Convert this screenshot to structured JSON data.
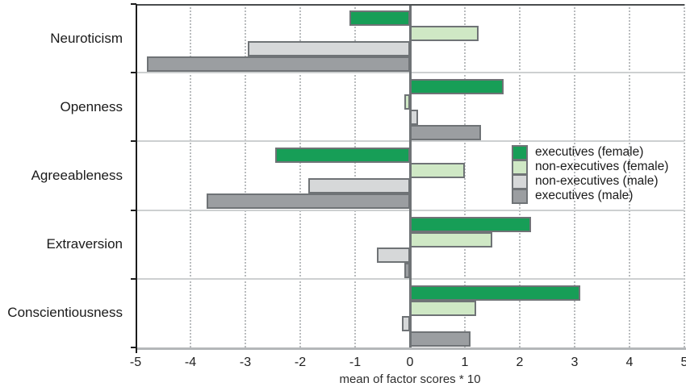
{
  "chart_data": {
    "type": "bar",
    "orientation": "horizontal",
    "title": "",
    "xlabel": "mean of factor scores * 10",
    "ylabel": "",
    "xlim": [
      -5,
      5
    ],
    "xticks": [
      -5,
      -4,
      -3,
      -2,
      -1,
      0,
      1,
      2,
      3,
      4,
      5
    ],
    "grid": "vertical dotted gridlines at each integer, horizontal solid separators between categories",
    "legend_position": "inside top-right (over Agreeableness band)",
    "categories": [
      "Neuroticism",
      "Openness",
      "Agreeableness",
      "Extraversion",
      "Conscientiousness"
    ],
    "series": [
      {
        "name": "executives (female)",
        "color": "#179e57",
        "values": [
          -1.1,
          1.7,
          -2.45,
          2.2,
          3.1
        ]
      },
      {
        "name": "non-executives (female)",
        "color": "#cfe8c5",
        "values": [
          1.25,
          -0.1,
          1.0,
          1.5,
          1.2
        ]
      },
      {
        "name": "non-executives (male)",
        "color": "#d6d8d9",
        "values": [
          -2.95,
          0.15,
          -1.85,
          -0.6,
          -0.15
        ]
      },
      {
        "name": "executives (male)",
        "color": "#9b9ea1",
        "values": [
          -4.8,
          1.3,
          -3.7,
          -0.1,
          1.1
        ]
      }
    ]
  },
  "colors": {
    "bar_border": "#6f7376",
    "zero_line": "#6f7376",
    "gridline": "#b9bcbe",
    "band_separator": "#cdd0d1",
    "left_axis": "#1c1c1c",
    "bottom_axis": "#b4b7b9",
    "text": "#1a1a1a",
    "background": "#ffffff"
  }
}
